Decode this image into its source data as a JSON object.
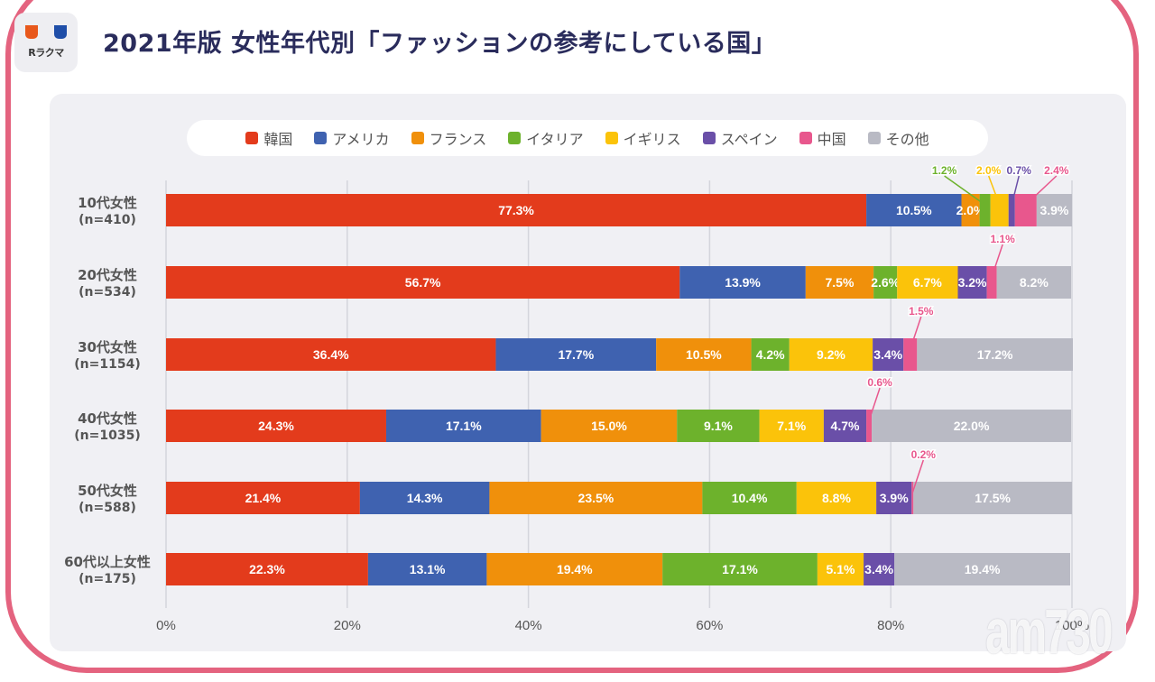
{
  "header": {
    "logo_text": "Rラクマ",
    "title": "2021年版 女性年代別「ファッションの参考にしている国」"
  },
  "watermark": "am730",
  "chart_data": {
    "type": "bar",
    "orientation": "horizontal",
    "stacked": true,
    "title": "2021年版 女性年代別「ファッションの参考にしている国」",
    "xlabel": "",
    "ylabel": "",
    "xlim": [
      0,
      100
    ],
    "x_ticks": [
      "0%",
      "20%",
      "40%",
      "60%",
      "80%",
      "100%"
    ],
    "grid": true,
    "legend_position": "top",
    "categories": [
      {
        "label": "10代女性",
        "n": "(n=410)"
      },
      {
        "label": "20代女性",
        "n": "(n=534)"
      },
      {
        "label": "30代女性",
        "n": "(n=1154)"
      },
      {
        "label": "40代女性",
        "n": "(n=1035)"
      },
      {
        "label": "50代女性",
        "n": "(n=588)"
      },
      {
        "label": "60代以上女性",
        "n": "(n=175)"
      }
    ],
    "series": [
      {
        "name": "韓国",
        "color": "#e33b1c",
        "values": [
          77.3,
          56.7,
          36.4,
          24.3,
          21.4,
          22.3
        ]
      },
      {
        "name": "アメリカ",
        "color": "#3f62b0",
        "values": [
          10.5,
          13.9,
          17.7,
          17.1,
          14.3,
          13.1
        ]
      },
      {
        "name": "フランス",
        "color": "#f0900b",
        "values": [
          2.0,
          7.5,
          10.5,
          15.0,
          23.5,
          19.4
        ]
      },
      {
        "name": "イタリア",
        "color": "#6db22c",
        "values": [
          1.2,
          2.6,
          4.2,
          9.1,
          10.4,
          17.1
        ]
      },
      {
        "name": "イギリス",
        "color": "#fbc30a",
        "values": [
          2.0,
          6.7,
          9.2,
          7.1,
          8.8,
          5.1
        ]
      },
      {
        "name": "スペイン",
        "color": "#6a4fa8",
        "values": [
          0.7,
          3.2,
          3.4,
          4.7,
          3.9,
          3.4
        ]
      },
      {
        "name": "中国",
        "color": "#e8578d",
        "values": [
          2.4,
          1.1,
          1.5,
          0.6,
          0.2,
          0
        ]
      },
      {
        "name": "その他",
        "color": "#b9bac4",
        "values": [
          3.9,
          8.2,
          17.2,
          22.0,
          17.5,
          19.4
        ]
      }
    ],
    "callouts": [
      {
        "row": 0,
        "series": 3,
        "text": "1.2%"
      },
      {
        "row": 0,
        "series": 4,
        "text": "2.0%"
      },
      {
        "row": 0,
        "series": 5,
        "text": "0.7%"
      },
      {
        "row": 0,
        "series": 6,
        "text": "2.4%"
      },
      {
        "row": 1,
        "series": 6,
        "text": "1.1%"
      },
      {
        "row": 2,
        "series": 6,
        "text": "1.5%"
      },
      {
        "row": 3,
        "series": 6,
        "text": "0.6%"
      },
      {
        "row": 4,
        "series": 6,
        "text": "0.2%"
      }
    ]
  }
}
